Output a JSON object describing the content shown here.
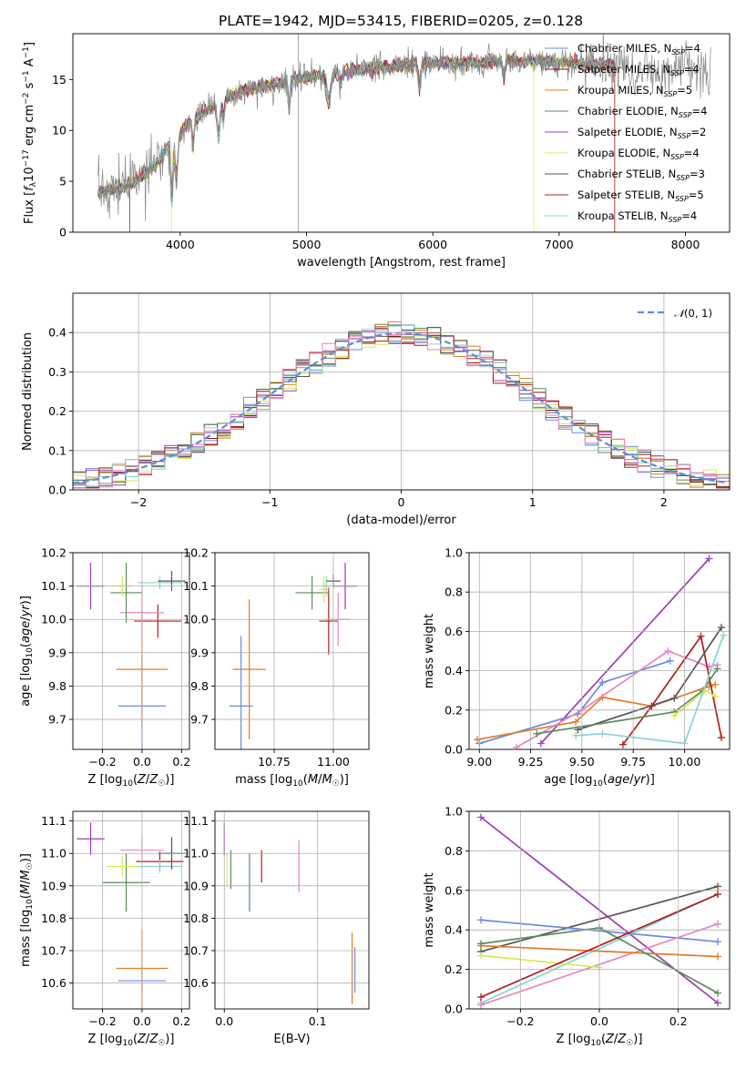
{
  "figure_title": "PLATE=1942, MJD=53415, FIBERID=0205, z=0.128",
  "colors": {
    "chabrier_miles": "#6b8be0",
    "salpeter_miles": "#7d1818",
    "kroupa_miles": "#e07d27",
    "chabrier_elodie": "#5b8a5b",
    "salpeter_elodie": "#9b3db3",
    "kroupa_elodie": "#d6ec4f",
    "chabrier_stelib": "#555555",
    "salpeter_stelib": "#b01d1d",
    "kroupa_stelib": "#86d4d4",
    "pink": "#e884c4",
    "gaussian": "#5b8fd6",
    "grid": "#b0b0b0"
  },
  "chart_data": [
    {
      "id": "spectrum",
      "type": "line",
      "title": "PLATE=1942, MJD=53415, FIBERID=0205, z=0.128",
      "xlabel": "wavelength [Angstrom, rest frame]",
      "ylabel": "Flux [f_λ 10^-17 erg cm^-2 s^-1 A^-1]",
      "xlim": [
        3150,
        8350
      ],
      "ylim": [
        0,
        19.5
      ],
      "xticks": [
        "4000",
        "5000",
        "6000",
        "7000",
        "8000"
      ],
      "yticks": [
        "0",
        "5",
        "10",
        "15"
      ],
      "grid": false,
      "legend_position": "right",
      "legend": [
        "Chabrier MILES, N_SSP=4",
        "Salpeter MILES, N_SSP=4",
        "Kroupa MILES, N_SSP=5",
        "Chabrier ELODIE, N_SSP=4",
        "Salpeter ELODIE, N_SSP=2",
        "Kroupa ELODIE, N_SSP=4",
        "Chabrier STELIB, N_SSP=3",
        "Salpeter STELIB, N_SSP=5",
        "Kroupa STELIB, N_SSP=4"
      ],
      "continuum": {
        "wavelength": [
          3400,
          3600,
          3800,
          3950,
          4100,
          4300,
          4500,
          4800,
          5000,
          5300,
          5600,
          5900,
          6200,
          6500,
          6800,
          7100,
          7400
        ],
        "flux": [
          4.0,
          4.6,
          6.5,
          9.2,
          11.0,
          12.8,
          13.8,
          14.8,
          15.2,
          15.8,
          16.2,
          16.6,
          16.6,
          16.8,
          16.8,
          16.6,
          16.4
        ]
      },
      "data_extent": [
        3350,
        8200
      ],
      "model_extent": [
        3350,
        7450
      ]
    },
    {
      "id": "residuals",
      "type": "line",
      "xlabel": "(data-model)/error",
      "ylabel": "Normed distribution",
      "xlim": [
        -2.5,
        2.5
      ],
      "ylim": [
        0,
        0.5
      ],
      "xticks": [
        "−2",
        "−1",
        "0",
        "1",
        "2"
      ],
      "yticks": [
        "0.0",
        "0.1",
        "0.2",
        "0.3",
        "0.4"
      ],
      "grid": true,
      "legend_position": "top-right",
      "legend": [
        "N(0,1)"
      ],
      "bin_width": 0.1
    },
    {
      "id": "age_vs_Z",
      "type": "scatter",
      "xlabel": "Z [log10(Z/Z☉)]",
      "ylabel": "age [log10(age/yr)]",
      "xlim": [
        -0.35,
        0.24
      ],
      "ylim": [
        9.61,
        10.2
      ],
      "xticks": [
        "−0.2",
        "0.0",
        "0.2"
      ],
      "yticks": [
        "9.7",
        "9.8",
        "9.9",
        "10.0",
        "10.1",
        "10.2"
      ],
      "grid": true,
      "points": [
        {
          "c": "chabrier_miles",
          "x": 0.0,
          "y": 9.74,
          "xerr": 0.12,
          "yerr": 0.15
        },
        {
          "c": "kroupa_miles",
          "x": 0.0,
          "y": 9.85,
          "xerr": 0.13,
          "yerr": 0.18
        },
        {
          "c": "salpeter_stelib",
          "x": 0.08,
          "y": 9.995,
          "xerr": 0.12,
          "yerr": 0.05
        },
        {
          "c": "pink",
          "x": 0.0,
          "y": 10.02,
          "xerr": 0.11,
          "yerr": 0.08
        },
        {
          "c": "chabrier_elodie",
          "x": -0.08,
          "y": 10.08,
          "xerr": 0.08,
          "yerr": 0.09
        },
        {
          "c": "kroupa_elodie",
          "x": -0.1,
          "y": 10.1,
          "xerr": 0.05,
          "yerr": 0.03
        },
        {
          "c": "salpeter_elodie",
          "x": -0.26,
          "y": 10.1,
          "xerr": 0.07,
          "yerr": 0.07
        },
        {
          "c": "kroupa_stelib",
          "x": 0.09,
          "y": 10.11,
          "xerr": 0.11,
          "yerr": 0.02
        },
        {
          "c": "chabrier_stelib",
          "x": 0.15,
          "y": 10.115,
          "xerr": 0.07,
          "yerr": 0.03
        }
      ]
    },
    {
      "id": "age_vs_mass",
      "type": "scatter",
      "xlabel": "mass [log10(M/M☉)]",
      "ylabel": "",
      "xlim": [
        10.5,
        11.15
      ],
      "ylim": [
        9.61,
        10.2
      ],
      "xticks": [
        "10.75",
        "11.00"
      ],
      "yticks": [
        "9.7",
        "9.8",
        "9.9",
        "10.0",
        "10.1",
        "10.2"
      ],
      "grid": true,
      "points": [
        {
          "c": "chabrier_miles",
          "x": 10.61,
          "y": 9.74,
          "xerr": 0.05,
          "yerr": 0.21
        },
        {
          "c": "kroupa_miles",
          "x": 10.645,
          "y": 9.85,
          "xerr": 0.07,
          "yerr": 0.21
        },
        {
          "c": "salpeter_stelib",
          "x": 10.98,
          "y": 9.995,
          "xerr": 0.04,
          "yerr": 0.1
        },
        {
          "c": "pink",
          "x": 11.02,
          "y": 10.0,
          "xerr": 0.05,
          "yerr": 0.08
        },
        {
          "c": "chabrier_elodie",
          "x": 10.91,
          "y": 10.08,
          "xerr": 0.07,
          "yerr": 0.05
        },
        {
          "c": "kroupa_elodie",
          "x": 10.96,
          "y": 10.09,
          "xerr": 0.02,
          "yerr": 0.04
        },
        {
          "c": "salpeter_elodie",
          "x": 11.05,
          "y": 10.1,
          "xerr": 0.05,
          "yerr": 0.07
        },
        {
          "c": "kroupa_stelib",
          "x": 10.97,
          "y": 10.1,
          "xerr": 0.02,
          "yerr": 0.03
        },
        {
          "c": "chabrier_stelib",
          "x": 11.0,
          "y": 10.115,
          "xerr": 0.03,
          "yerr": 0.02
        }
      ]
    },
    {
      "id": "weight_vs_age",
      "type": "line",
      "xlabel": "age [log10(age/yr)]",
      "ylabel": "mass weight",
      "xlim": [
        8.95,
        10.22
      ],
      "ylim": [
        0,
        1.0
      ],
      "xticks": [
        "9.00",
        "9.25",
        "9.50",
        "9.75",
        "10.00"
      ],
      "yticks": [
        "0.0",
        "0.2",
        "0.4",
        "0.6",
        "0.8",
        "1.0"
      ],
      "grid": true,
      "series": [
        {
          "c": "salpeter_elodie",
          "x": [
            9.3,
            10.12
          ],
          "y": [
            0.03,
            0.97
          ]
        },
        {
          "c": "chabrier_miles",
          "x": [
            9.0,
            9.48,
            9.6,
            9.93
          ],
          "y": [
            0.03,
            0.18,
            0.34,
            0.45
          ]
        },
        {
          "c": "kroupa_miles",
          "x": [
            8.99,
            9.47,
            9.6,
            9.84,
            10.12,
            10.15
          ],
          "y": [
            0.05,
            0.14,
            0.265,
            0.22,
            0.32,
            0.33
          ]
        },
        {
          "c": "pink",
          "x": [
            9.18,
            9.5,
            9.92,
            10.12,
            10.16
          ],
          "y": [
            0.01,
            0.2,
            0.5,
            0.42,
            0.43
          ]
        },
        {
          "c": "salpeter_stelib",
          "x": [
            9.7,
            9.84,
            10.08,
            10.18
          ],
          "y": [
            0.025,
            0.22,
            0.575,
            0.06
          ]
        },
        {
          "c": "chabrier_stelib",
          "x": [
            9.48,
            9.95,
            10.18
          ],
          "y": [
            0.1,
            0.26,
            0.62
          ]
        },
        {
          "c": "chabrier_elodie",
          "x": [
            9.28,
            9.95,
            10.09,
            10.16
          ],
          "y": [
            0.08,
            0.19,
            0.3,
            0.41
          ]
        },
        {
          "c": "kroupa_elodie",
          "x": [
            9.95,
            10.1,
            10.15
          ],
          "y": [
            0.17,
            0.3,
            0.27
          ]
        },
        {
          "c": "kroupa_stelib",
          "x": [
            9.47,
            9.6,
            10.0,
            10.19
          ],
          "y": [
            0.07,
            0.08,
            0.03,
            0.58
          ]
        }
      ]
    },
    {
      "id": "mass_vs_Z",
      "type": "scatter",
      "xlabel": "Z [log10(Z/Z☉)]",
      "ylabel": "mass [log10(M/M☉)]",
      "xlim": [
        -0.35,
        0.24
      ],
      "ylim": [
        10.52,
        11.13
      ],
      "xticks": [
        "−0.2",
        "0.0",
        "0.2"
      ],
      "yticks": [
        "10.6",
        "10.7",
        "10.8",
        "10.9",
        "11.0",
        "11.1"
      ],
      "grid": true,
      "points": [
        {
          "c": "chabrier_miles",
          "x": 0.0,
          "y": 10.607,
          "xerr": 0.12,
          "yerr": 0.03
        },
        {
          "c": "kroupa_miles",
          "x": 0.0,
          "y": 10.645,
          "xerr": 0.13,
          "yerr": 0.12
        },
        {
          "c": "chabrier_elodie",
          "x": -0.08,
          "y": 10.91,
          "xerr": 0.12,
          "yerr": 0.09
        },
        {
          "c": "kroupa_elodie",
          "x": -0.1,
          "y": 10.96,
          "xerr": 0.08,
          "yerr": 0.03
        },
        {
          "c": "salpeter_stelib",
          "x": 0.09,
          "y": 10.975,
          "xerr": 0.12,
          "yerr": 0.03
        },
        {
          "c": "kroupa_stelib",
          "x": 0.09,
          "y": 10.96,
          "xerr": 0.11,
          "yerr": 0.02
        },
        {
          "c": "pink",
          "x": 0.0,
          "y": 11.01,
          "xerr": 0.11,
          "yerr": 0.04
        },
        {
          "c": "chabrier_stelib",
          "x": 0.15,
          "y": 11.0,
          "xerr": 0.07,
          "yerr": 0.05
        },
        {
          "c": "salpeter_elodie",
          "x": -0.26,
          "y": 11.045,
          "xerr": 0.07,
          "yerr": 0.05
        }
      ]
    },
    {
      "id": "mass_vs_ebv",
      "type": "scatter",
      "xlabel": "E(B-V)",
      "ylabel": "",
      "xlim": [
        -0.01,
        0.155
      ],
      "ylim": [
        10.52,
        11.13
      ],
      "xticks": [
        "0.0",
        "0.1"
      ],
      "yticks": [
        "10.6",
        "10.7",
        "10.8",
        "10.9",
        "11.0",
        "11.1"
      ],
      "grid": true,
      "points": [
        {
          "c": "salpeter_elodie",
          "x": 0.0,
          "y": 11.045,
          "yerr": 0.05
        },
        {
          "c": "kroupa_elodie",
          "x": 0.003,
          "y": 10.95,
          "yerr": 0.05
        },
        {
          "c": "chabrier_elodie",
          "x": 0.007,
          "y": 10.95,
          "yerr": 0.06
        },
        {
          "c": "chabrier_elodie",
          "x": 0.027,
          "y": 10.91,
          "yerr": 0.09
        },
        {
          "c": "salpeter_stelib",
          "x": 0.04,
          "y": 10.96,
          "yerr": 0.05
        },
        {
          "c": "pink",
          "x": 0.08,
          "y": 10.96,
          "yerr": 0.08
        },
        {
          "c": "kroupa_miles",
          "x": 0.137,
          "y": 10.645,
          "yerr": 0.11
        },
        {
          "c": "chabrier_miles",
          "x": 0.14,
          "y": 10.64,
          "yerr": 0.07
        }
      ]
    },
    {
      "id": "weight_vs_Z",
      "type": "line",
      "xlabel": "Z [log10(Z/Z☉)]",
      "ylabel": "mass weight",
      "xlim": [
        -0.33,
        0.33
      ],
      "ylim": [
        0,
        1.0
      ],
      "xticks": [
        "−0.2",
        "0.0",
        "0.2"
      ],
      "yticks": [
        "0.0",
        "0.2",
        "0.4",
        "0.6",
        "0.8",
        "1.0"
      ],
      "grid": true,
      "series": [
        {
          "c": "salpeter_elodie",
          "x": [
            -0.3,
            0.3
          ],
          "y": [
            0.97,
            0.03
          ]
        },
        {
          "c": "chabrier_stelib",
          "x": [
            -0.3,
            0.3
          ],
          "y": [
            0.29,
            0.62
          ]
        },
        {
          "c": "kroupa_stelib",
          "x": [
            -0.3,
            0.3
          ],
          "y": [
            0.03,
            0.58
          ]
        },
        {
          "c": "chabrier_miles",
          "x": [
            -0.3,
            0.3
          ],
          "y": [
            0.45,
            0.34
          ]
        },
        {
          "c": "pink",
          "x": [
            -0.3,
            0.3
          ],
          "y": [
            0.02,
            0.43
          ]
        },
        {
          "c": "kroupa_miles",
          "x": [
            -0.3,
            0.3
          ],
          "y": [
            0.32,
            0.265
          ]
        },
        {
          "c": "chabrier_elodie",
          "x": [
            -0.3,
            0.0,
            0.3
          ],
          "y": [
            0.33,
            0.41,
            0.08
          ]
        },
        {
          "c": "kroupa_elodie",
          "x": [
            -0.3,
            0.0
          ],
          "y": [
            0.27,
            0.21
          ]
        },
        {
          "c": "salpeter_stelib",
          "x": [
            -0.3,
            0.3
          ],
          "y": [
            0.06,
            0.58
          ]
        }
      ]
    }
  ]
}
